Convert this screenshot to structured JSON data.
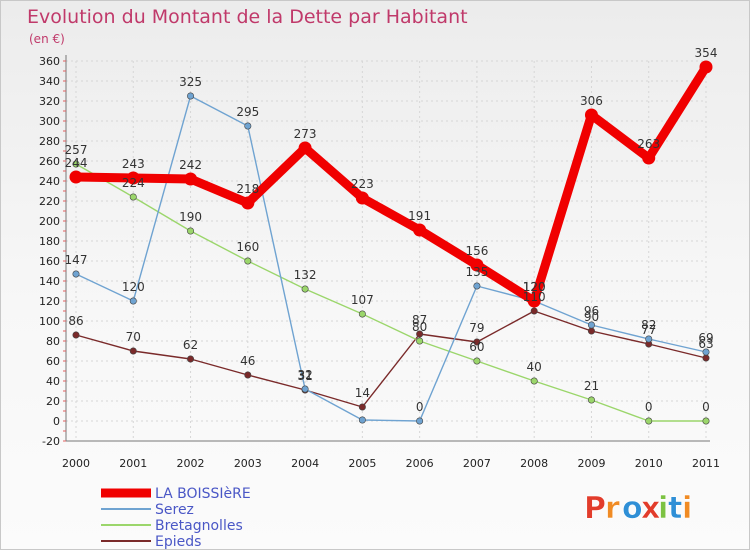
{
  "chart_data": {
    "type": "line",
    "title": "Evolution du Montant de la Dette par Habitant",
    "subtitle": "(en €)",
    "xlabel": "",
    "ylabel": "",
    "categories": [
      "2000",
      "2001",
      "2002",
      "2003",
      "2004",
      "2005",
      "2006",
      "2007",
      "2008",
      "2009",
      "2010",
      "2011"
    ],
    "ylim": [
      -20,
      360
    ],
    "yticks": [
      -20,
      0,
      20,
      40,
      60,
      80,
      100,
      120,
      140,
      160,
      180,
      200,
      220,
      240,
      260,
      280,
      300,
      320,
      340,
      360
    ],
    "grid": true,
    "legend_position": "bottom-left",
    "series": [
      {
        "name": "LA BOISSIèRE",
        "color": "#f00000",
        "values": [
          244,
          243,
          242,
          218,
          273,
          223,
          191,
          156,
          120,
          306,
          263,
          354
        ]
      },
      {
        "name": "Serez",
        "color": "#6fa3d1",
        "values": [
          147,
          120,
          325,
          295,
          32,
          1,
          0,
          135,
          120,
          96,
          82,
          69
        ]
      },
      {
        "name": "Bretagnolles",
        "color": "#9bd66b",
        "values": [
          257,
          224,
          190,
          160,
          132,
          107,
          80,
          60,
          40,
          21,
          0,
          0
        ]
      },
      {
        "name": "Epieds",
        "color": "#7a2a2a",
        "values": [
          86,
          70,
          62,
          46,
          31,
          14,
          87,
          79,
          110,
          90,
          77,
          63
        ]
      }
    ],
    "data_labels": [
      [
        "244",
        "243",
        "242",
        "218",
        "273",
        "223",
        "191",
        "156",
        "120",
        "306",
        "263",
        "354"
      ],
      [
        "147",
        "120",
        "325",
        "295",
        "32",
        "",
        "0",
        "135",
        "120",
        "96",
        "82",
        "69"
      ],
      [
        "257",
        "224",
        "190",
        "160",
        "132",
        "107",
        "80",
        "60",
        "40",
        "21",
        "0",
        "0"
      ],
      [
        "86",
        "70",
        "62",
        "46",
        "31",
        "14",
        "87",
        "79",
        "110",
        "90",
        "77",
        "63"
      ]
    ]
  },
  "logo": {
    "text": "Proxiti",
    "colors": [
      "#e23c2b",
      "#f08b24",
      "#2f8fd6",
      "#e23c2b",
      "#7cc242",
      "#2f8fd6",
      "#f08b24"
    ]
  }
}
